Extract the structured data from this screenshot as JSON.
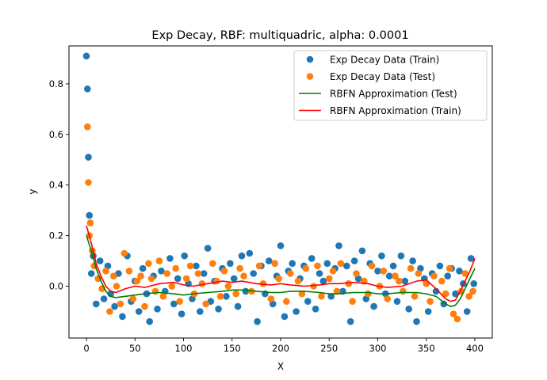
{
  "chart_data": {
    "type": "scatter",
    "title": "Exp Decay, RBF: multiquadric, alpha: 0.0001",
    "xlabel": "X",
    "ylabel": "y",
    "xlim": [
      -18,
      418
    ],
    "ylim": [
      -0.205,
      0.95
    ],
    "xticks": [
      0,
      50,
      100,
      150,
      200,
      250,
      300,
      350,
      400
    ],
    "yticks": [
      0.0,
      0.2,
      0.4,
      0.6,
      0.8
    ],
    "ytick_labels": [
      "0.0",
      "0.2",
      "0.4",
      "0.6",
      "0.8"
    ],
    "legend_position": "top-right",
    "colors": {
      "train": "#1f77b4",
      "test": "#ff7f0e",
      "approx_test": "#008000",
      "approx_train": "#ff0000"
    },
    "series": [
      {
        "name": "Exp Decay Data (Train)",
        "kind": "scatter",
        "x": [
          0,
          1,
          2,
          3,
          5,
          7,
          10,
          14,
          18,
          22,
          25,
          29,
          33,
          37,
          42,
          46,
          50,
          54,
          58,
          62,
          65,
          69,
          73,
          77,
          81,
          86,
          90,
          94,
          98,
          101,
          105,
          109,
          113,
          117,
          121,
          125,
          128,
          132,
          136,
          140,
          144,
          148,
          152,
          156,
          160,
          164,
          168,
          172,
          176,
          180,
          184,
          188,
          192,
          196,
          200,
          204,
          208,
          212,
          216,
          220,
          224,
          228,
          232,
          236,
          240,
          244,
          248,
          252,
          256,
          260,
          264,
          268,
          272,
          276,
          280,
          284,
          288,
          292,
          296,
          300,
          304,
          308,
          312,
          316,
          320,
          324,
          328,
          332,
          336,
          340,
          344,
          348,
          352,
          356,
          360,
          364,
          368,
          372,
          376,
          380,
          384,
          388,
          392,
          396,
          399
        ],
        "y": [
          0.91,
          0.78,
          0.51,
          0.28,
          0.05,
          0.12,
          -0.07,
          0.1,
          -0.05,
          0.08,
          -0.03,
          -0.08,
          0.05,
          -0.12,
          0.12,
          -0.06,
          0.02,
          -0.1,
          0.07,
          -0.03,
          -0.14,
          0.04,
          -0.09,
          0.06,
          -0.02,
          0.11,
          -0.07,
          0.03,
          -0.11,
          0.12,
          0.01,
          -0.05,
          0.08,
          -0.1,
          0.05,
          0.15,
          -0.06,
          0.02,
          -0.09,
          0.07,
          -0.04,
          0.09,
          0.03,
          -0.08,
          0.12,
          -0.02,
          0.13,
          0.05,
          -0.14,
          0.08,
          -0.03,
          0.1,
          -0.07,
          0.04,
          0.16,
          -0.12,
          0.06,
          0.09,
          -0.1,
          0.03,
          0.08,
          -0.06,
          0.11,
          -0.09,
          0.05,
          0.02,
          0.09,
          -0.04,
          0.07,
          0.16,
          -0.02,
          0.08,
          -0.14,
          0.1,
          0.03,
          0.14,
          -0.05,
          0.09,
          -0.08,
          0.06,
          0.12,
          -0.03,
          0.04,
          0.08,
          -0.06,
          0.12,
          0.02,
          -0.09,
          0.1,
          -0.14,
          0.07,
          0.03,
          -0.1,
          0.05,
          -0.02,
          0.08,
          -0.07,
          0.04,
          0.07,
          -0.03,
          0.06,
          0.01,
          -0.1,
          0.11,
          0.01
        ]
      },
      {
        "name": "Exp Decay Data (Test)",
        "kind": "scatter",
        "x": [
          1,
          2,
          3,
          4,
          6,
          8,
          12,
          16,
          20,
          24,
          28,
          31,
          35,
          39,
          44,
          48,
          52,
          56,
          60,
          64,
          67,
          71,
          75,
          79,
          83,
          88,
          92,
          96,
          103,
          107,
          111,
          115,
          119,
          123,
          130,
          134,
          138,
          142,
          146,
          154,
          158,
          162,
          170,
          178,
          182,
          190,
          194,
          198,
          206,
          210,
          218,
          222,
          226,
          234,
          238,
          242,
          250,
          254,
          258,
          262,
          270,
          274,
          278,
          286,
          290,
          294,
          302,
          306,
          310,
          318,
          322,
          326,
          334,
          338,
          342,
          350,
          354,
          358,
          366,
          370,
          374,
          378,
          382,
          386,
          390,
          394,
          398
        ],
        "y": [
          0.63,
          0.41,
          0.2,
          0.25,
          0.14,
          0.08,
          0.03,
          -0.01,
          0.06,
          -0.1,
          0.04,
          0.0,
          -0.07,
          0.13,
          0.06,
          -0.05,
          0.02,
          0.04,
          -0.08,
          0.09,
          0.03,
          -0.02,
          0.1,
          -0.04,
          0.05,
          0.0,
          0.07,
          -0.06,
          0.03,
          0.08,
          -0.03,
          0.05,
          0.01,
          -0.07,
          0.09,
          0.02,
          -0.04,
          0.06,
          0.0,
          -0.03,
          0.07,
          0.04,
          -0.02,
          0.08,
          0.01,
          -0.05,
          0.09,
          0.03,
          -0.06,
          0.05,
          0.02,
          -0.03,
          0.07,
          0.0,
          0.08,
          -0.04,
          0.03,
          0.06,
          -0.02,
          0.09,
          0.01,
          -0.06,
          0.05,
          0.02,
          -0.03,
          0.08,
          0.0,
          0.06,
          -0.05,
          0.04,
          0.02,
          -0.02,
          0.07,
          -0.04,
          0.05,
          0.01,
          -0.06,
          0.04,
          0.02,
          -0.03,
          0.07,
          -0.11,
          -0.13,
          -0.02,
          0.05,
          -0.04,
          -0.02
        ]
      },
      {
        "name": "RBFN Approximation (Test)",
        "kind": "line",
        "x": [
          0,
          5,
          10,
          15,
          20,
          25,
          30,
          40,
          50,
          60,
          75,
          90,
          100,
          110,
          125,
          140,
          150,
          160,
          175,
          190,
          200,
          210,
          225,
          240,
          250,
          260,
          275,
          290,
          300,
          310,
          325,
          340,
          350,
          360,
          370,
          375,
          380,
          385,
          390,
          395,
          400
        ],
        "y": [
          0.2,
          0.14,
          0.07,
          0.02,
          -0.02,
          -0.04,
          -0.045,
          -0.04,
          -0.035,
          -0.03,
          -0.025,
          -0.03,
          -0.035,
          -0.03,
          -0.025,
          -0.02,
          -0.015,
          -0.015,
          -0.02,
          -0.025,
          -0.025,
          -0.02,
          -0.02,
          -0.025,
          -0.03,
          -0.03,
          -0.025,
          -0.025,
          -0.03,
          -0.03,
          -0.025,
          -0.025,
          -0.03,
          -0.04,
          -0.07,
          -0.08,
          -0.075,
          -0.05,
          -0.01,
          0.03,
          0.07
        ]
      },
      {
        "name": "RBFN Approximation (Train)",
        "kind": "line",
        "x": [
          0,
          5,
          10,
          15,
          20,
          25,
          30,
          40,
          50,
          60,
          75,
          90,
          100,
          110,
          125,
          140,
          150,
          160,
          175,
          190,
          200,
          210,
          225,
          240,
          250,
          260,
          275,
          290,
          300,
          310,
          325,
          340,
          350,
          360,
          370,
          375,
          380,
          385,
          390,
          395,
          400
        ],
        "y": [
          0.24,
          0.17,
          0.09,
          0.04,
          0.0,
          -0.02,
          -0.025,
          -0.01,
          0.0,
          -0.005,
          0.01,
          0.015,
          0.005,
          0.0,
          0.01,
          0.02,
          0.015,
          0.02,
          0.01,
          0.005,
          0.01,
          0.005,
          0.0,
          0.005,
          0.01,
          0.01,
          0.015,
          0.01,
          0.0,
          -0.005,
          0.0,
          0.02,
          0.025,
          -0.01,
          -0.05,
          -0.06,
          -0.055,
          -0.02,
          0.02,
          0.06,
          0.11
        ]
      }
    ]
  }
}
